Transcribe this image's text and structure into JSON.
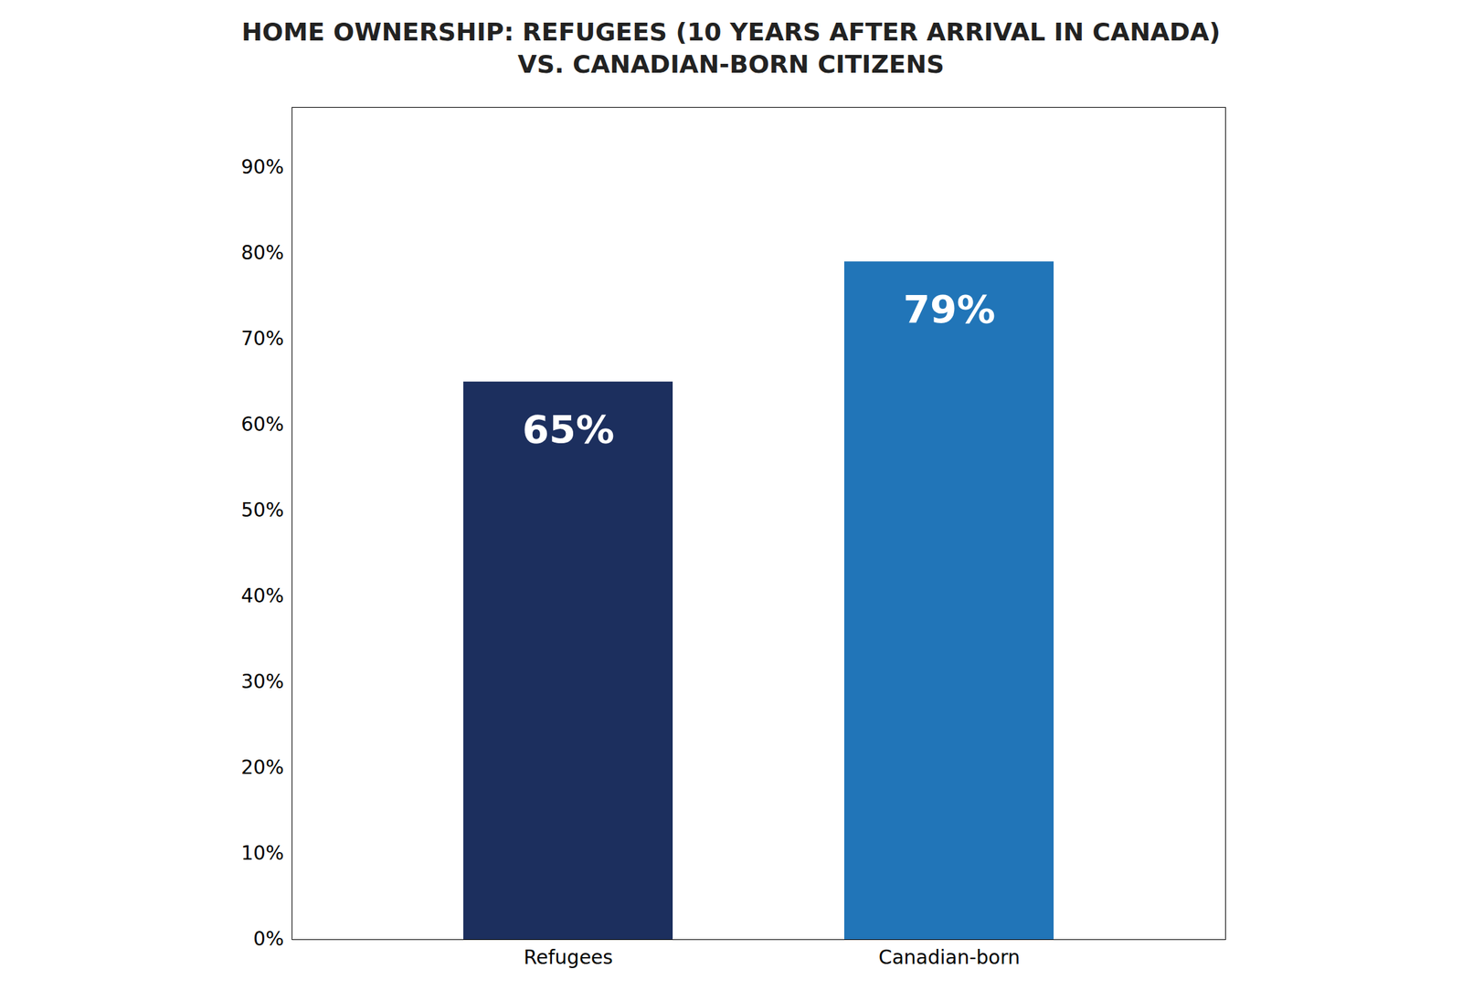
{
  "chart_data": {
    "type": "bar",
    "title": "HOME OWNERSHIP: REFUGEES (10 YEARS AFTER ARRIVAL IN CANADA)\nVS. CANADIAN-BORN CITIZENS",
    "categories": [
      "Refugees",
      "Canadian-born"
    ],
    "values": [
      65,
      79
    ],
    "colors": [
      "#1c2f5e",
      "#2175b8"
    ],
    "data_labels": true,
    "value_labels": [
      "65%",
      "79%"
    ],
    "ylim": [
      0,
      97
    ],
    "yticks": [
      {
        "value": 0,
        "label": "0%"
      },
      {
        "value": 10,
        "label": "10%"
      },
      {
        "value": 20,
        "label": "20%"
      },
      {
        "value": 30,
        "label": "30%"
      },
      {
        "value": 40,
        "label": "40%"
      },
      {
        "value": 50,
        "label": "50%"
      },
      {
        "value": 60,
        "label": "60%"
      },
      {
        "value": 70,
        "label": "70%"
      },
      {
        "value": 80,
        "label": "80%"
      },
      {
        "value": 90,
        "label": "90%"
      }
    ],
    "grid": false
  }
}
